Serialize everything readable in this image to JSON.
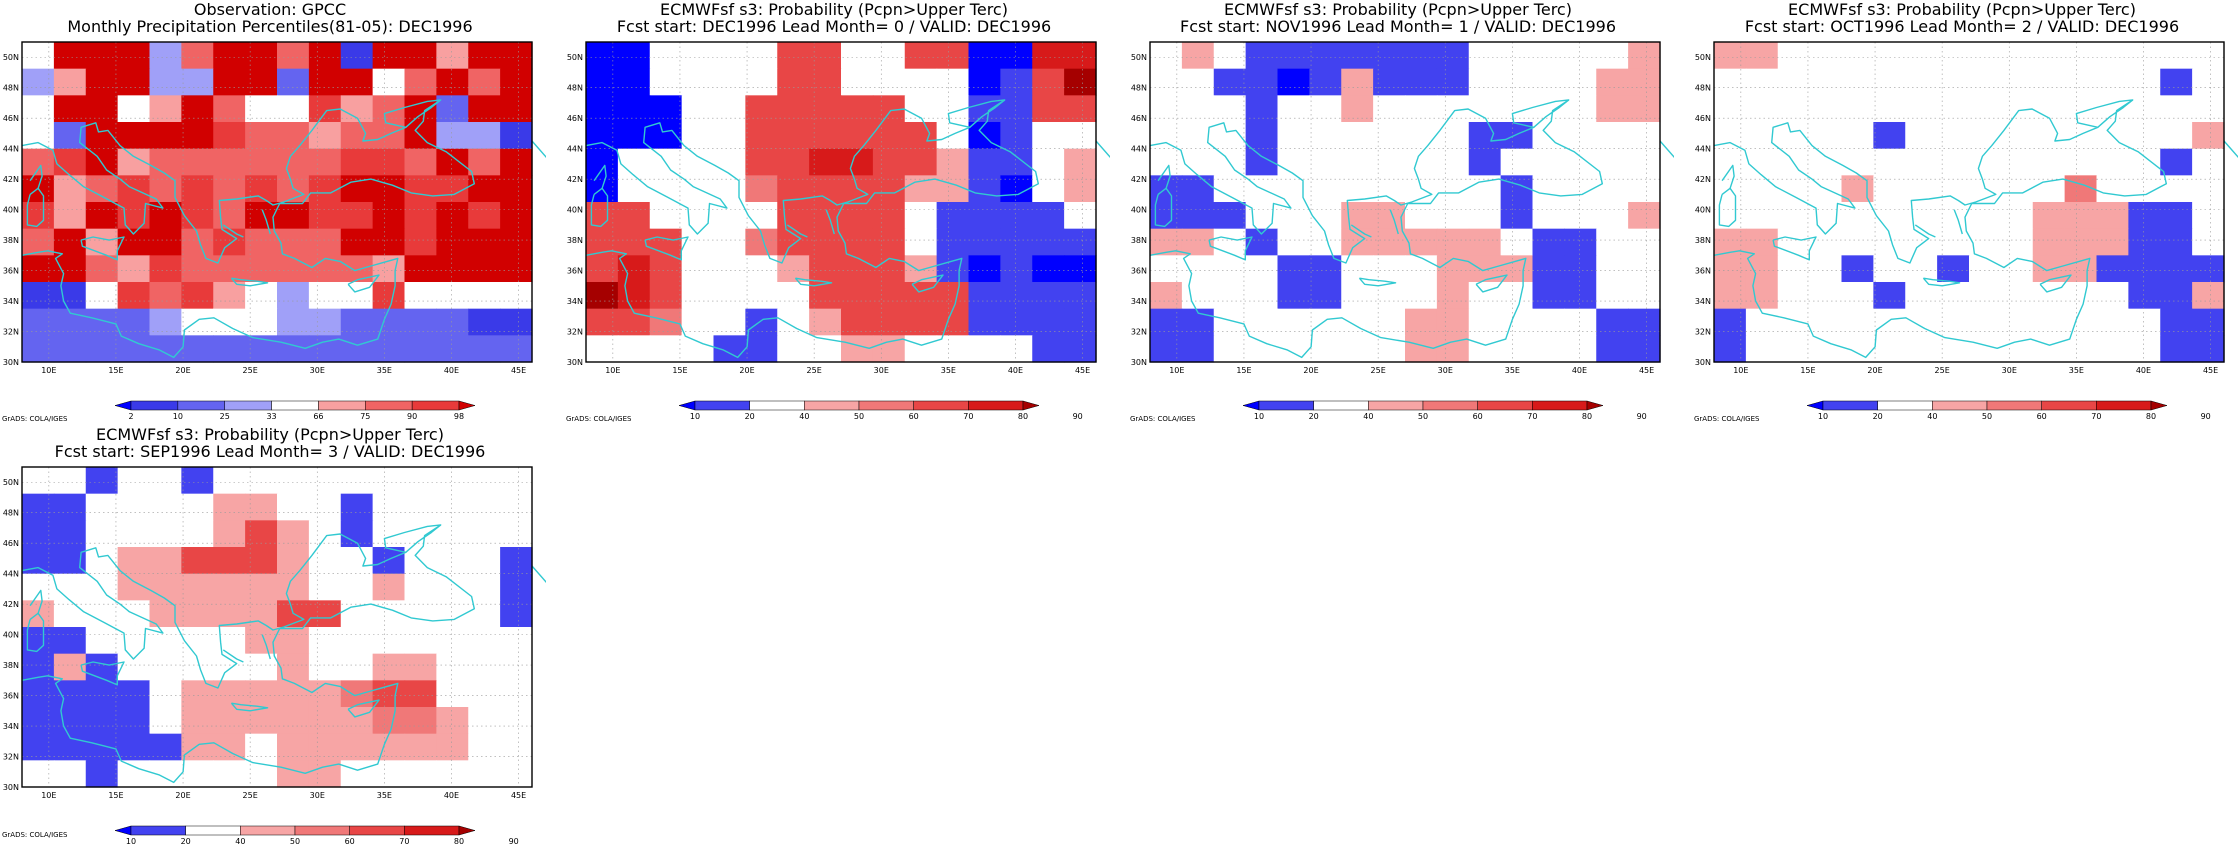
{
  "figure": {
    "credit": "GrADS: COLA/IGES",
    "lon_labels": [
      "10E",
      "15E",
      "20E",
      "25E",
      "30E",
      "35E",
      "40E",
      "45E"
    ],
    "lat_labels": [
      "30N",
      "32N",
      "34N",
      "36N",
      "38N",
      "40N",
      "42N",
      "44N",
      "46N",
      "48N",
      "50N"
    ],
    "lon_range": [
      8,
      46
    ],
    "lat_range": [
      30,
      51
    ],
    "grid_step_deg": 2.5,
    "coast_color": "#31c9d1",
    "grid_lines": "dotted",
    "palettes": {
      "obs": [
        "#0000ff",
        "#3a3ae8",
        "#6464f0",
        "#a0a0f8",
        "#ffffff",
        "#f8a0a0",
        "#f06464",
        "#e83a3a",
        "#d10000"
      ],
      "prob": [
        "#0000ff",
        "#4242f0",
        "#ffffff",
        "#f7a5a5",
        "#f07878",
        "#e84646",
        "#d71a1a",
        "#a50000"
      ]
    }
  },
  "panels": [
    {
      "id": "obs",
      "title1": "Observation: GPCC",
      "title2": "Monthly Precipitation Percentiles(81-05): DEC1996",
      "colorbar_labels": [
        "2",
        "10",
        "25",
        "33",
        "66",
        "75",
        "90",
        "98"
      ],
      "palette": "obs",
      "grid": [
        [
          4,
          8,
          8,
          8,
          3,
          6,
          8,
          8,
          6,
          8,
          1,
          8,
          8,
          5,
          8,
          8
        ],
        [
          3,
          5,
          8,
          8,
          3,
          3,
          8,
          8,
          2,
          8,
          8,
          4,
          6,
          8,
          6,
          8
        ],
        [
          4,
          8,
          8,
          4,
          5,
          8,
          6,
          4,
          4,
          7,
          5,
          6,
          8,
          2,
          8,
          8
        ],
        [
          4,
          2,
          8,
          8,
          8,
          8,
          7,
          6,
          6,
          5,
          6,
          6,
          8,
          3,
          3,
          1
        ],
        [
          6,
          7,
          8,
          5,
          6,
          6,
          6,
          6,
          6,
          6,
          7,
          7,
          6,
          8,
          6,
          8
        ],
        [
          8,
          5,
          6,
          7,
          6,
          7,
          6,
          7,
          6,
          7,
          8,
          8,
          7,
          7,
          8,
          8
        ],
        [
          7,
          5,
          8,
          7,
          8,
          7,
          6,
          8,
          8,
          7,
          7,
          8,
          7,
          8,
          7,
          8
        ],
        [
          6,
          8,
          5,
          8,
          8,
          6,
          7,
          6,
          6,
          6,
          8,
          8,
          7,
          8,
          8,
          8
        ],
        [
          8,
          8,
          6,
          5,
          7,
          6,
          6,
          6,
          6,
          6,
          6,
          5,
          8,
          8,
          8,
          8
        ],
        [
          1,
          1,
          4,
          7,
          6,
          7,
          5,
          4,
          3,
          4,
          4,
          7,
          4,
          4,
          4,
          4
        ],
        [
          2,
          2,
          2,
          2,
          3,
          4,
          4,
          4,
          3,
          3,
          2,
          2,
          2,
          2,
          1,
          1
        ],
        [
          2,
          2,
          2,
          2,
          2,
          2,
          2,
          2,
          2,
          2,
          2,
          2,
          2,
          2,
          2,
          2
        ]
      ]
    },
    {
      "id": "lead0",
      "title1": "ECMWFsf s3: Probability (Pcpn>Upper Terc)",
      "title2": "Fcst start: DEC1996  Lead Month= 0 / VALID: DEC1996",
      "colorbar_labels": [
        "10",
        "20",
        "40",
        "50",
        "60",
        "70",
        "80",
        "90"
      ],
      "palette": "prob",
      "grid": [
        [
          0,
          0,
          2,
          2,
          2,
          2,
          5,
          5,
          2,
          2,
          5,
          5,
          0,
          0,
          6,
          6
        ],
        [
          0,
          0,
          2,
          2,
          2,
          2,
          5,
          5,
          2,
          2,
          2,
          2,
          0,
          1,
          5,
          7
        ],
        [
          0,
          0,
          0,
          2,
          2,
          5,
          5,
          5,
          5,
          5,
          2,
          2,
          1,
          1,
          5,
          5
        ],
        [
          0,
          0,
          0,
          2,
          2,
          5,
          5,
          5,
          5,
          5,
          5,
          2,
          0,
          1,
          2,
          2
        ],
        [
          0,
          2,
          2,
          2,
          2,
          5,
          5,
          6,
          6,
          5,
          5,
          3,
          1,
          1,
          2,
          3
        ],
        [
          0,
          2,
          2,
          2,
          2,
          4,
          5,
          5,
          5,
          5,
          3,
          3,
          1,
          0,
          2,
          3
        ],
        [
          5,
          5,
          2,
          2,
          2,
          2,
          5,
          5,
          5,
          5,
          2,
          1,
          1,
          1,
          1,
          2
        ],
        [
          5,
          5,
          5,
          2,
          2,
          4,
          5,
          5,
          5,
          5,
          2,
          1,
          1,
          1,
          1,
          1
        ],
        [
          5,
          6,
          5,
          2,
          2,
          2,
          3,
          5,
          5,
          5,
          3,
          1,
          0,
          1,
          0,
          0
        ],
        [
          7,
          6,
          5,
          2,
          2,
          2,
          2,
          5,
          5,
          5,
          5,
          5,
          1,
          1,
          1,
          1
        ],
        [
          5,
          5,
          4,
          2,
          2,
          1,
          2,
          3,
          5,
          5,
          5,
          5,
          1,
          1,
          1,
          1
        ],
        [
          2,
          2,
          2,
          2,
          1,
          1,
          2,
          2,
          3,
          3,
          2,
          2,
          2,
          2,
          1,
          1
        ]
      ]
    },
    {
      "id": "lead1",
      "title1": "ECMWFsf s3: Probability (Pcpn>Upper Terc)",
      "title2": "Fcst start: NOV1996  Lead Month= 1 / VALID: DEC1996",
      "colorbar_labels": [
        "10",
        "20",
        "40",
        "50",
        "60",
        "70",
        "80",
        "90"
      ],
      "palette": "prob",
      "grid": [
        [
          2,
          3,
          2,
          1,
          1,
          1,
          1,
          1,
          1,
          1,
          2,
          2,
          2,
          2,
          2,
          3
        ],
        [
          2,
          2,
          1,
          1,
          0,
          1,
          3,
          1,
          1,
          1,
          2,
          2,
          2,
          2,
          3,
          3
        ],
        [
          2,
          2,
          2,
          1,
          2,
          2,
          3,
          2,
          2,
          2,
          2,
          2,
          2,
          2,
          3,
          3
        ],
        [
          2,
          2,
          2,
          1,
          2,
          2,
          2,
          2,
          2,
          2,
          1,
          1,
          2,
          2,
          2,
          2
        ],
        [
          2,
          2,
          2,
          1,
          2,
          2,
          2,
          2,
          2,
          2,
          1,
          2,
          2,
          2,
          2,
          2
        ],
        [
          1,
          1,
          2,
          2,
          2,
          2,
          2,
          2,
          2,
          2,
          2,
          1,
          2,
          2,
          2,
          2
        ],
        [
          1,
          1,
          1,
          2,
          2,
          2,
          3,
          3,
          2,
          2,
          2,
          1,
          2,
          2,
          2,
          3
        ],
        [
          3,
          3,
          2,
          1,
          2,
          2,
          3,
          3,
          3,
          3,
          3,
          2,
          1,
          1,
          2,
          2
        ],
        [
          2,
          2,
          2,
          2,
          1,
          1,
          2,
          2,
          2,
          3,
          3,
          3,
          1,
          1,
          2,
          2
        ],
        [
          3,
          2,
          2,
          2,
          1,
          1,
          2,
          2,
          2,
          3,
          2,
          2,
          1,
          1,
          2,
          2
        ],
        [
          1,
          1,
          2,
          2,
          2,
          2,
          2,
          2,
          3,
          3,
          2,
          2,
          2,
          2,
          1,
          1
        ],
        [
          1,
          1,
          2,
          2,
          2,
          2,
          2,
          2,
          3,
          3,
          2,
          2,
          2,
          2,
          1,
          1
        ]
      ]
    },
    {
      "id": "lead2",
      "title1": "ECMWFsf s3: Probability (Pcpn>Upper Terc)",
      "title2": "Fcst start: OCT1996  Lead Month= 2 / VALID: DEC1996",
      "colorbar_labels": [
        "10",
        "20",
        "40",
        "50",
        "60",
        "70",
        "80",
        "90"
      ],
      "palette": "prob",
      "grid": [
        [
          3,
          3,
          2,
          2,
          2,
          2,
          2,
          2,
          2,
          2,
          2,
          2,
          2,
          2,
          2,
          2
        ],
        [
          2,
          2,
          2,
          2,
          2,
          2,
          2,
          2,
          2,
          2,
          2,
          2,
          2,
          2,
          1,
          2
        ],
        [
          2,
          2,
          2,
          2,
          2,
          2,
          2,
          2,
          2,
          2,
          2,
          2,
          2,
          2,
          2,
          2
        ],
        [
          2,
          2,
          2,
          2,
          2,
          1,
          2,
          2,
          2,
          2,
          2,
          2,
          2,
          2,
          2,
          3
        ],
        [
          2,
          2,
          2,
          2,
          2,
          2,
          2,
          2,
          2,
          2,
          2,
          2,
          2,
          2,
          1,
          2
        ],
        [
          2,
          2,
          2,
          2,
          3,
          2,
          2,
          2,
          2,
          2,
          2,
          4,
          2,
          2,
          2,
          2
        ],
        [
          2,
          2,
          2,
          2,
          2,
          2,
          2,
          2,
          2,
          2,
          3,
          3,
          3,
          1,
          1,
          2
        ],
        [
          3,
          3,
          2,
          2,
          2,
          2,
          2,
          2,
          2,
          2,
          3,
          3,
          3,
          1,
          1,
          2
        ],
        [
          3,
          3,
          2,
          2,
          1,
          2,
          2,
          1,
          2,
          2,
          3,
          3,
          1,
          1,
          1,
          1
        ],
        [
          3,
          3,
          2,
          2,
          2,
          1,
          2,
          2,
          2,
          2,
          2,
          2,
          2,
          1,
          1,
          3
        ],
        [
          1,
          2,
          2,
          2,
          2,
          2,
          2,
          2,
          2,
          2,
          2,
          2,
          2,
          2,
          1,
          1
        ],
        [
          1,
          2,
          2,
          2,
          2,
          2,
          2,
          2,
          2,
          2,
          2,
          2,
          2,
          2,
          1,
          1
        ]
      ]
    },
    {
      "id": "lead3",
      "title1": "ECMWFsf s3: Probability (Pcpn>Upper Terc)",
      "title2": "Fcst start: SEP1996  Lead Month= 3 / VALID: DEC1996",
      "colorbar_labels": [
        "10",
        "20",
        "40",
        "50",
        "60",
        "70",
        "80",
        "90"
      ],
      "palette": "prob",
      "grid": [
        [
          2,
          2,
          1,
          2,
          2,
          1,
          2,
          2,
          2,
          2,
          2,
          2,
          2,
          2,
          2,
          2
        ],
        [
          1,
          1,
          2,
          2,
          2,
          2,
          3,
          3,
          2,
          2,
          1,
          2,
          2,
          2,
          2,
          2
        ],
        [
          1,
          1,
          2,
          2,
          2,
          2,
          3,
          5,
          3,
          2,
          1,
          2,
          2,
          2,
          2,
          2
        ],
        [
          1,
          1,
          2,
          3,
          3,
          5,
          5,
          5,
          3,
          2,
          2,
          1,
          2,
          2,
          2,
          1
        ],
        [
          2,
          2,
          2,
          3,
          3,
          3,
          3,
          3,
          3,
          2,
          2,
          3,
          2,
          2,
          2,
          1
        ],
        [
          3,
          2,
          2,
          2,
          3,
          3,
          3,
          3,
          5,
          5,
          2,
          2,
          2,
          2,
          2,
          1
        ],
        [
          1,
          1,
          2,
          2,
          2,
          2,
          2,
          3,
          3,
          2,
          2,
          2,
          2,
          2,
          2,
          2
        ],
        [
          1,
          3,
          1,
          2,
          2,
          2,
          2,
          2,
          3,
          2,
          2,
          3,
          3,
          2,
          2,
          2
        ],
        [
          1,
          1,
          1,
          1,
          2,
          3,
          3,
          3,
          3,
          3,
          4,
          5,
          5,
          2,
          2,
          2
        ],
        [
          1,
          1,
          1,
          1,
          2,
          3,
          3,
          3,
          3,
          3,
          3,
          4,
          4,
          3,
          2,
          2
        ],
        [
          1,
          1,
          1,
          1,
          1,
          3,
          3,
          2,
          3,
          3,
          3,
          3,
          3,
          3,
          2,
          2
        ],
        [
          2,
          2,
          1,
          2,
          2,
          2,
          2,
          2,
          3,
          3,
          2,
          2,
          2,
          2,
          2,
          2
        ]
      ]
    }
  ]
}
